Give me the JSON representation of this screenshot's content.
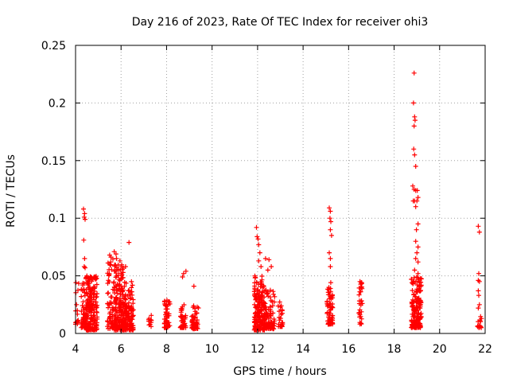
{
  "chart_data": {
    "type": "scatter",
    "title": "Day 216 of 2023, Rate Of TEC Index for receiver ohi3",
    "xlabel": "GPS time / hours",
    "ylabel": "ROTI / TECUs",
    "xlim": [
      4,
      22
    ],
    "ylim": [
      0,
      0.25
    ],
    "xticks": [
      4,
      6,
      8,
      10,
      12,
      14,
      16,
      18,
      20,
      22
    ],
    "yticks": [
      0,
      0.05,
      0.1,
      0.15,
      0.2,
      0.25
    ],
    "ytick_labels": [
      "0",
      "0.05",
      "0.1",
      "0.15",
      "0.2",
      "0.25"
    ],
    "grid": true,
    "marker": "plus",
    "color": "#ff0000",
    "clusters": [
      {
        "x_range": [
          3.95,
          4.15
        ],
        "y_range": [
          0.008,
          0.045
        ],
        "count": 20
      },
      {
        "x_range": [
          4.25,
          4.45
        ],
        "y_range": [
          0.005,
          0.045
        ],
        "count": 50
      },
      {
        "x_range": [
          4.45,
          4.95
        ],
        "y_range": [
          0.003,
          0.05
        ],
        "count": 200
      },
      {
        "x_range": [
          5.4,
          5.7
        ],
        "y_range": [
          0.004,
          0.07
        ],
        "count": 60
      },
      {
        "x_range": [
          5.7,
          6.1
        ],
        "y_range": [
          0.003,
          0.06
        ],
        "count": 170
      },
      {
        "x_range": [
          6.1,
          6.55
        ],
        "y_range": [
          0.003,
          0.045
        ],
        "count": 140
      },
      {
        "x_range": [
          7.2,
          7.35
        ],
        "y_range": [
          0.005,
          0.025
        ],
        "count": 10
      },
      {
        "x_range": [
          7.9,
          8.15
        ],
        "y_range": [
          0.005,
          0.03
        ],
        "count": 50
      },
      {
        "x_range": [
          8.6,
          8.85
        ],
        "y_range": [
          0.005,
          0.025
        ],
        "count": 45
      },
      {
        "x_range": [
          9.1,
          9.4
        ],
        "y_range": [
          0.004,
          0.025
        ],
        "count": 50
      },
      {
        "x_range": [
          11.85,
          12.3
        ],
        "y_range": [
          0.003,
          0.05
        ],
        "count": 170
      },
      {
        "x_range": [
          12.3,
          12.75
        ],
        "y_range": [
          0.004,
          0.04
        ],
        "count": 90
      },
      {
        "x_range": [
          12.9,
          13.1
        ],
        "y_range": [
          0.006,
          0.03
        ],
        "count": 25
      },
      {
        "x_range": [
          15.05,
          15.3
        ],
        "y_range": [
          0.008,
          0.045
        ],
        "count": 70
      },
      {
        "x_range": [
          16.45,
          16.6
        ],
        "y_range": [
          0.008,
          0.045
        ],
        "count": 30
      },
      {
        "x_range": [
          18.75,
          19.2
        ],
        "y_range": [
          0.005,
          0.05
        ],
        "count": 160
      },
      {
        "x_range": [
          21.65,
          21.85
        ],
        "y_range": [
          0.005,
          0.015
        ],
        "count": 15
      }
    ],
    "points": [
      [
        4.35,
        0.108
      ],
      [
        4.4,
        0.104
      ],
      [
        4.38,
        0.101
      ],
      [
        4.42,
        0.099
      ],
      [
        4.36,
        0.081
      ],
      [
        4.4,
        0.065
      ],
      [
        4.38,
        0.058
      ],
      [
        4.42,
        0.057
      ],
      [
        4.5,
        0.05
      ],
      [
        5.5,
        0.068
      ],
      [
        5.55,
        0.062
      ],
      [
        5.7,
        0.071
      ],
      [
        5.8,
        0.065
      ],
      [
        5.78,
        0.069
      ],
      [
        5.9,
        0.055
      ],
      [
        5.95,
        0.063
      ],
      [
        6.0,
        0.048
      ],
      [
        6.2,
        0.058
      ],
      [
        6.35,
        0.079
      ],
      [
        8.75,
        0.052
      ],
      [
        8.85,
        0.054
      ],
      [
        8.7,
        0.049
      ],
      [
        9.2,
        0.041
      ],
      [
        11.95,
        0.092
      ],
      [
        11.98,
        0.084
      ],
      [
        12.02,
        0.082
      ],
      [
        12.05,
        0.077
      ],
      [
        12.1,
        0.07
      ],
      [
        12.05,
        0.063
      ],
      [
        12.15,
        0.058
      ],
      [
        12.35,
        0.065
      ],
      [
        12.5,
        0.064
      ],
      [
        12.45,
        0.055
      ],
      [
        12.6,
        0.058
      ],
      [
        15.15,
        0.109
      ],
      [
        15.2,
        0.106
      ],
      [
        15.18,
        0.1
      ],
      [
        15.22,
        0.097
      ],
      [
        15.2,
        0.09
      ],
      [
        15.25,
        0.085
      ],
      [
        15.15,
        0.07
      ],
      [
        15.2,
        0.065
      ],
      [
        15.2,
        0.058
      ],
      [
        16.5,
        0.045
      ],
      [
        16.55,
        0.04
      ],
      [
        18.88,
        0.226
      ],
      [
        18.85,
        0.2
      ],
      [
        18.9,
        0.188
      ],
      [
        18.92,
        0.185
      ],
      [
        18.88,
        0.18
      ],
      [
        18.86,
        0.16
      ],
      [
        18.9,
        0.155
      ],
      [
        18.95,
        0.145
      ],
      [
        18.82,
        0.128
      ],
      [
        18.88,
        0.125
      ],
      [
        18.95,
        0.124
      ],
      [
        19.02,
        0.124
      ],
      [
        18.84,
        0.115
      ],
      [
        18.9,
        0.115
      ],
      [
        19.0,
        0.115
      ],
      [
        19.05,
        0.118
      ],
      [
        18.95,
        0.11
      ],
      [
        19.05,
        0.095
      ],
      [
        18.98,
        0.09
      ],
      [
        18.95,
        0.08
      ],
      [
        19.05,
        0.075
      ],
      [
        19.0,
        0.07
      ],
      [
        19.05,
        0.062
      ],
      [
        18.95,
        0.065
      ],
      [
        18.9,
        0.055
      ],
      [
        19.05,
        0.052
      ],
      [
        21.7,
        0.093
      ],
      [
        21.75,
        0.088
      ],
      [
        21.72,
        0.052
      ],
      [
        21.7,
        0.046
      ],
      [
        21.75,
        0.045
      ],
      [
        21.7,
        0.037
      ],
      [
        21.72,
        0.033
      ],
      [
        21.75,
        0.025
      ],
      [
        21.7,
        0.022
      ]
    ]
  }
}
